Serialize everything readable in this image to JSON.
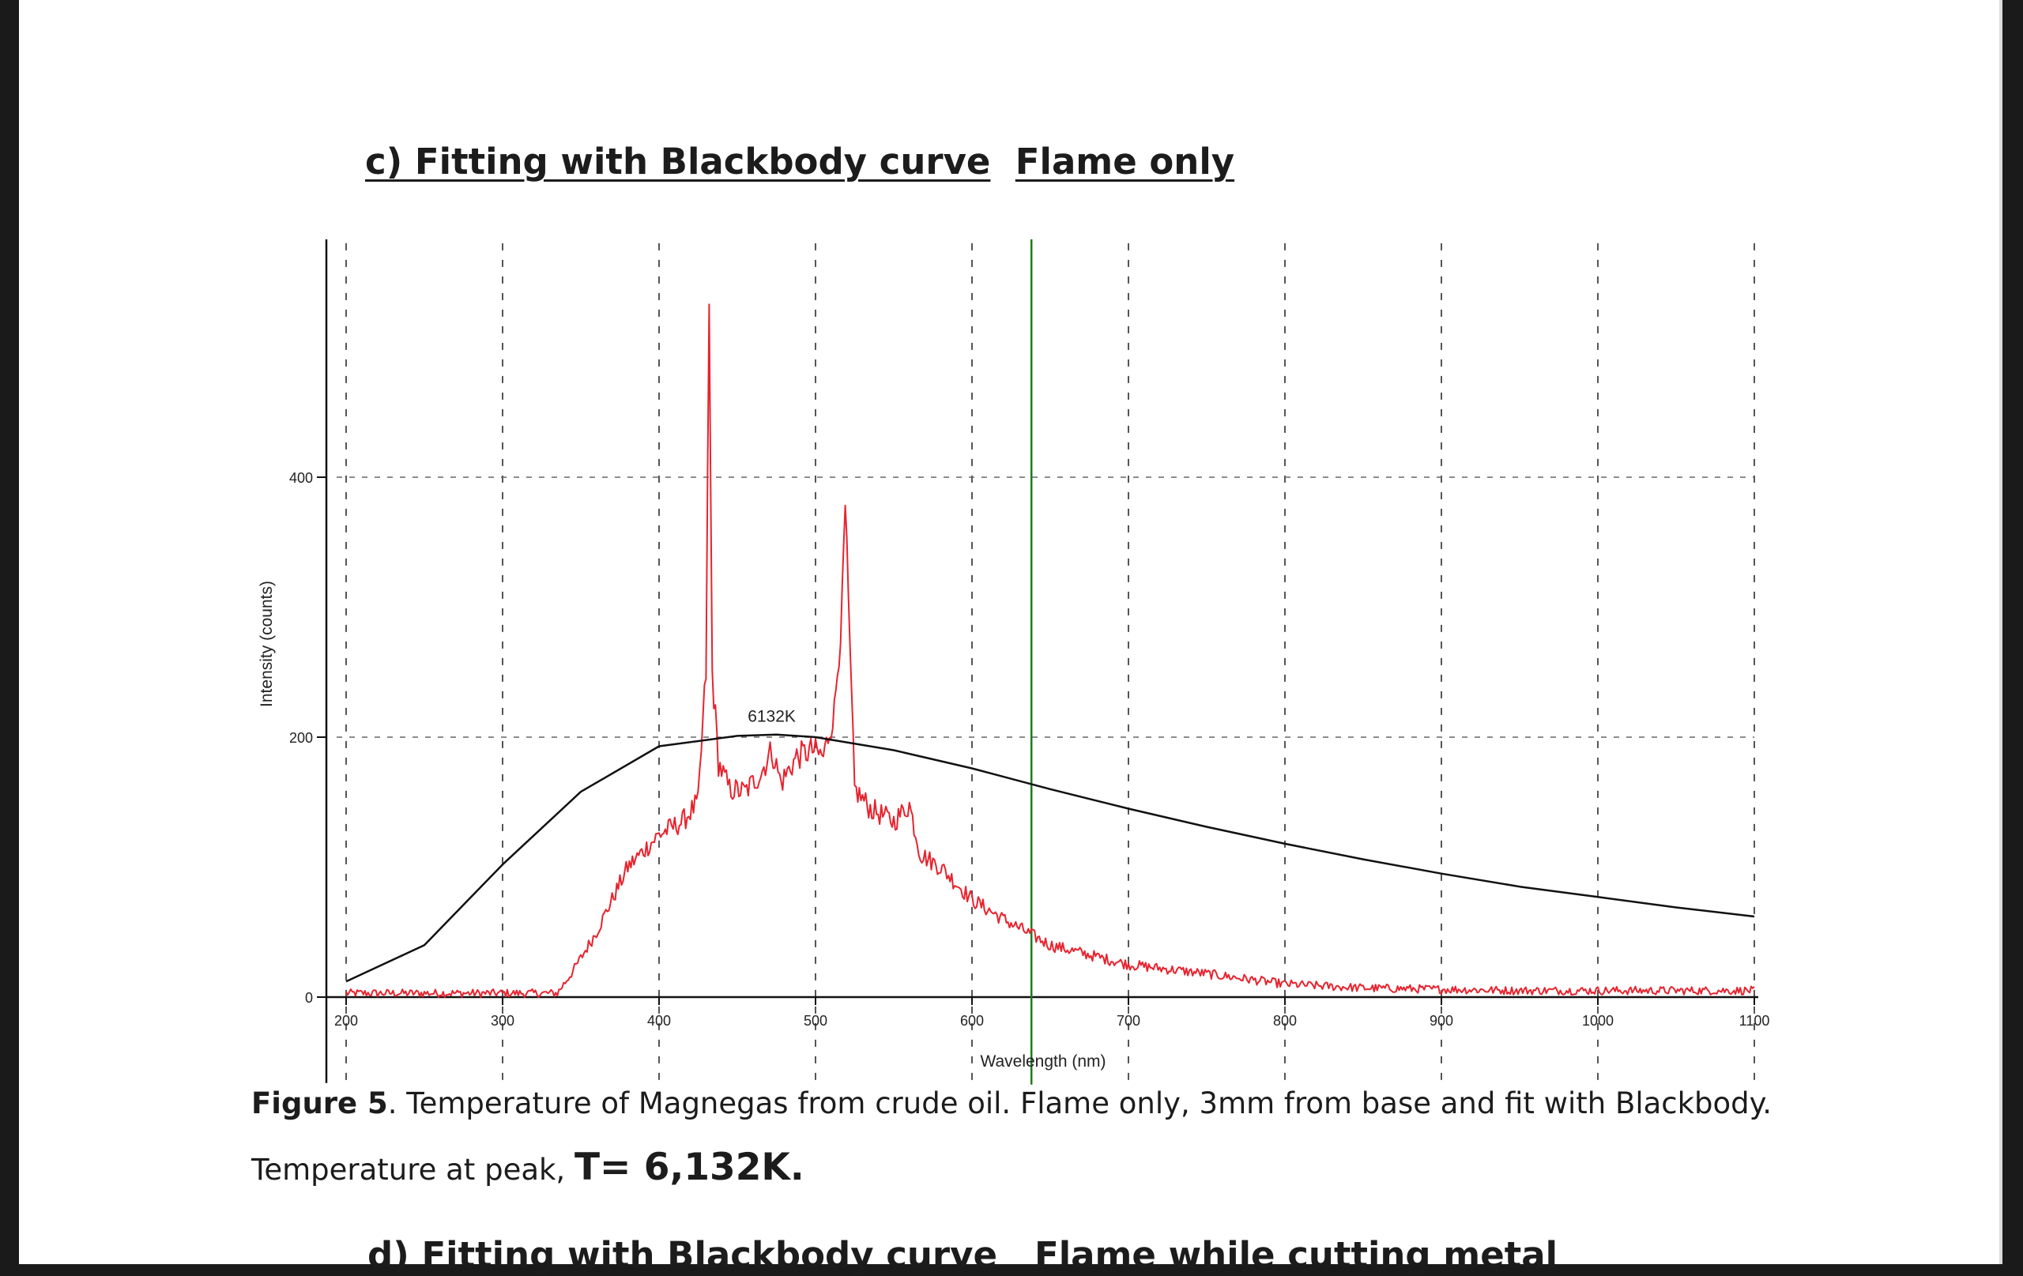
{
  "document": {
    "heading_c": {
      "part1": "c) Fitting with Blackbody curve",
      "part2": "Flame only"
    },
    "heading_d": {
      "part1": "d) Fitting with Blackbody curve",
      "part2": "Flame while cutting metal"
    },
    "caption": {
      "label": "Figure 5",
      "text1": ". Temperature of Magnegas from crude oil. Flame only, 3mm from base and fit with Blackbody.",
      "text2": "Temperature at peak, ",
      "temp": "T= 6,132K."
    }
  },
  "chart_data": {
    "type": "line",
    "xlabel": "Wavelength (nm)",
    "ylabel": "Intensity (counts)",
    "xlim": [
      200,
      1100
    ],
    "ylim": [
      -60,
      580
    ],
    "x_ticks": [
      200,
      300,
      400,
      500,
      600,
      700,
      800,
      900,
      1000,
      1100
    ],
    "y_ticks": [
      0,
      200,
      400
    ],
    "grid": true,
    "annotation": {
      "text": "6132K",
      "x": 472,
      "y": 212
    },
    "marker_line": {
      "x": 638,
      "color": "#1f7a1f"
    },
    "series": [
      {
        "color": "#e8232e",
        "noise": 5,
        "points": [
          [
            200,
            3
          ],
          [
            250,
            3
          ],
          [
            300,
            3
          ],
          [
            335,
            3
          ],
          [
            345,
            20
          ],
          [
            360,
            50
          ],
          [
            380,
            100
          ],
          [
            400,
            125
          ],
          [
            415,
            135
          ],
          [
            425,
            150
          ],
          [
            430,
            250
          ],
          [
            432,
            528
          ],
          [
            434,
            250
          ],
          [
            438,
            180
          ],
          [
            445,
            160
          ],
          [
            455,
            158
          ],
          [
            465,
            172
          ],
          [
            472,
            190
          ],
          [
            478,
            165
          ],
          [
            488,
            185
          ],
          [
            498,
            190
          ],
          [
            505,
            185
          ],
          [
            512,
            220
          ],
          [
            517,
            300
          ],
          [
            519,
            375
          ],
          [
            521,
            300
          ],
          [
            525,
            160
          ],
          [
            535,
            145
          ],
          [
            550,
            135
          ],
          [
            560,
            148
          ],
          [
            567,
            110
          ],
          [
            580,
            100
          ],
          [
            600,
            75
          ],
          [
            620,
            60
          ],
          [
            650,
            40
          ],
          [
            700,
            25
          ],
          [
            750,
            18
          ],
          [
            800,
            10
          ],
          [
            850,
            7
          ],
          [
            900,
            6
          ],
          [
            950,
            5
          ],
          [
            1000,
            5
          ],
          [
            1100,
            5
          ]
        ]
      },
      {
        "color": "#111111",
        "points": [
          [
            200,
            12
          ],
          [
            250,
            40
          ],
          [
            300,
            102
          ],
          [
            350,
            158
          ],
          [
            400,
            193
          ],
          [
            450,
            201
          ],
          [
            475,
            202
          ],
          [
            500,
            200
          ],
          [
            550,
            190
          ],
          [
            600,
            176
          ],
          [
            650,
            160
          ],
          [
            700,
            145
          ],
          [
            750,
            131
          ],
          [
            800,
            118
          ],
          [
            850,
            106
          ],
          [
            900,
            95
          ],
          [
            950,
            85
          ],
          [
            1000,
            77
          ],
          [
            1050,
            69
          ],
          [
            1100,
            62
          ]
        ]
      }
    ]
  }
}
